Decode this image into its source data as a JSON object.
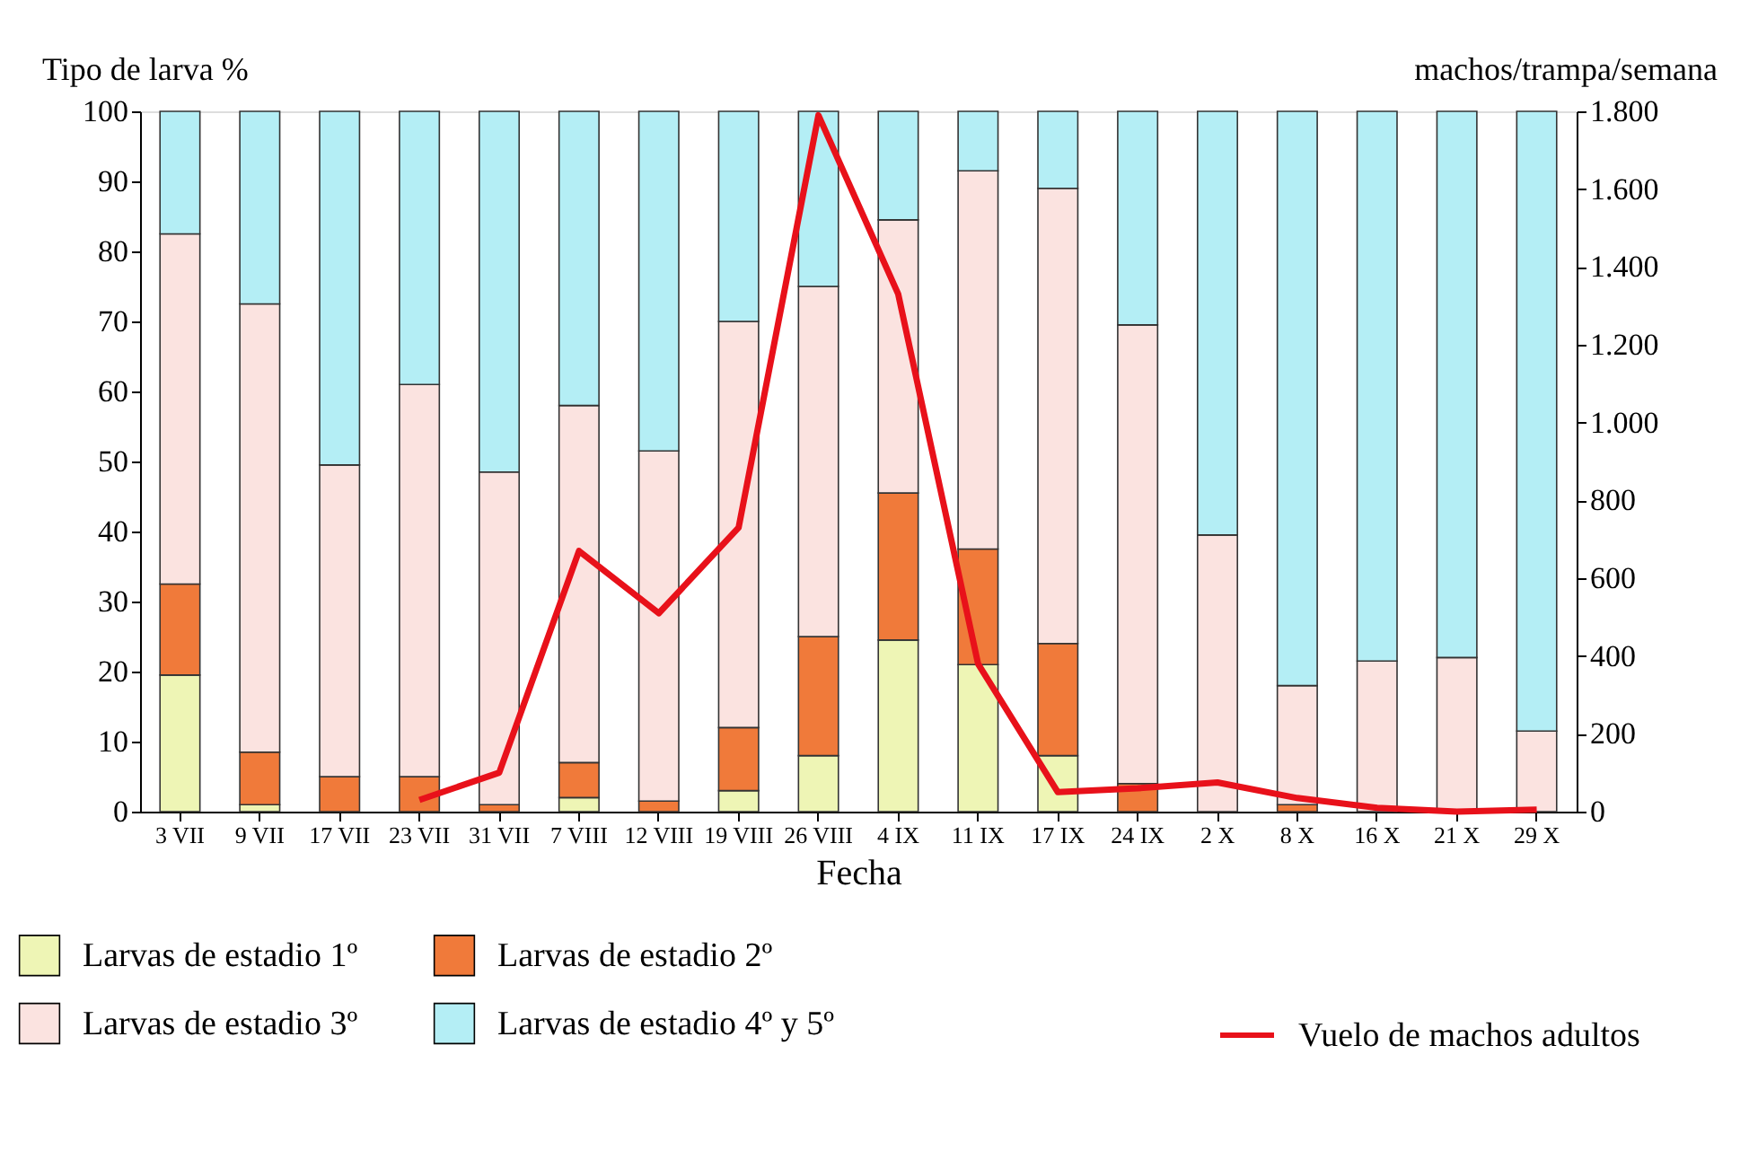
{
  "chart_data": {
    "type": "bar",
    "stacked": true,
    "xlabel": "Fecha",
    "ylabel": "Tipo de larva %",
    "y2label": "machos/trampa/semana",
    "categories": [
      "3 VII",
      "9 VII",
      "17 VII",
      "23 VII",
      "31 VII",
      "7 VIII",
      "12 VIII",
      "19 VIII",
      "26 VIII",
      "4 IX",
      "11 IX",
      "17 IX",
      "24 IX",
      "2 X",
      "8 X",
      "16 X",
      "21 X",
      "29 X"
    ],
    "series": [
      {
        "name": "Larvas de estadio 1º",
        "color": "#eef5b5",
        "values": [
          19.5,
          1,
          0,
          0,
          0,
          2,
          0,
          3,
          8,
          24.5,
          21,
          8,
          0,
          0,
          0,
          0,
          0,
          0
        ]
      },
      {
        "name": "Larvas de estadio 2º",
        "color": "#f07a3a",
        "values": [
          13,
          7.5,
          5,
          5,
          1,
          5,
          1.5,
          9,
          17,
          21,
          16.5,
          16,
          4,
          0,
          1,
          0,
          0,
          0
        ]
      },
      {
        "name": "Larvas de estadio 3º",
        "color": "#fbe3e0",
        "values": [
          50,
          64,
          44.5,
          56,
          47.5,
          51,
          50,
          58,
          50,
          39,
          54,
          65,
          65.5,
          39.5,
          17,
          21.5,
          22,
          11.5
        ]
      },
      {
        "name": "Larvas de estadio 4º y 5º",
        "color": "#b4eef5",
        "values": [
          17.5,
          27.5,
          50.5,
          39,
          51.5,
          42,
          48.5,
          30,
          25,
          15.5,
          8.5,
          11,
          30.5,
          60.5,
          82,
          78.5,
          78,
          88.5
        ]
      },
      {
        "name": "Vuelo de machos adultos",
        "type": "line",
        "axis": "y2",
        "color": "#e8111a",
        "marker": "none",
        "line_style": "solid",
        "values": [
          null,
          null,
          null,
          30,
          100,
          670,
          510,
          730,
          1790,
          1330,
          380,
          50,
          60,
          75,
          35,
          10,
          0,
          5
        ]
      }
    ],
    "ylim": [
      0,
      100
    ],
    "yticks": [
      0,
      10,
      20,
      30,
      40,
      50,
      60,
      70,
      80,
      90,
      100
    ],
    "y2lim": [
      0,
      1800
    ],
    "y2ticks": [
      0,
      200,
      400,
      600,
      800,
      {
        "value": 1000,
        "label": "1.000"
      },
      {
        "value": 1200,
        "label": "1.200"
      },
      {
        "value": 1400,
        "label": "1.400"
      },
      {
        "value": 1600,
        "label": "1.600"
      },
      {
        "value": 1800,
        "label": "1.800"
      }
    ],
    "grid": false,
    "legend": "bottom"
  }
}
